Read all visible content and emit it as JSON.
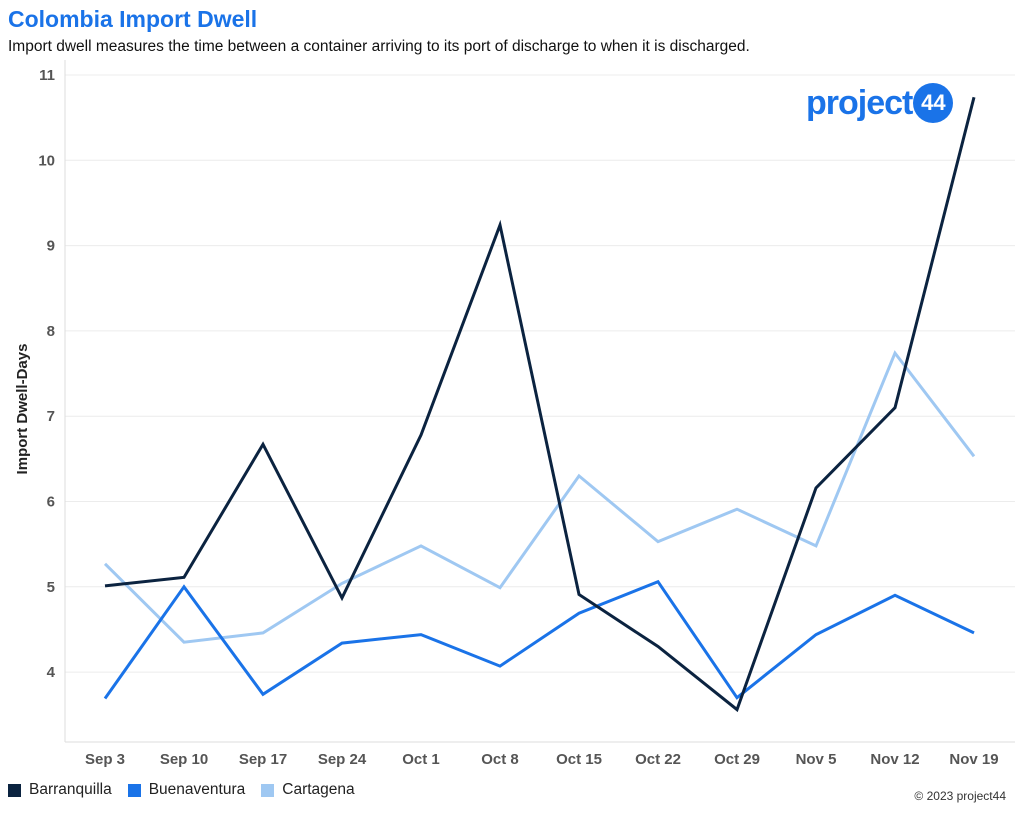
{
  "header": {
    "title": "Colombia Import Dwell",
    "subtitle": "Import dwell measures the time between a container arriving to its port of discharge to when it is discharged."
  },
  "logo": {
    "text": "project",
    "badge": "44"
  },
  "footer": {
    "copyright": "© 2023 project44"
  },
  "colors": {
    "title": "#1a73e8",
    "barranquilla": "#0b2340",
    "buenaventura": "#1a73e8",
    "cartagena": "#9fc8f2"
  },
  "chart_data": {
    "type": "line",
    "title": "Colombia Import Dwell",
    "xlabel": "",
    "ylabel": "Import Dwell-Days",
    "categories": [
      "Sep 3",
      "Sep 10",
      "Sep 17",
      "Sep 24",
      "Oct 1",
      "Oct 8",
      "Oct 15",
      "Oct 22",
      "Oct 29",
      "Nov 5",
      "Nov 12",
      "Nov 19"
    ],
    "ylim": [
      3.2,
      11
    ],
    "yticks": [
      4,
      5,
      6,
      7,
      8,
      9,
      10,
      11
    ],
    "grid": true,
    "legend": "bottom-left",
    "series": [
      {
        "name": "Barranquilla",
        "color": "#0b2340",
        "values": [
          5.01,
          5.11,
          6.67,
          4.87,
          6.78,
          9.24,
          4.91,
          4.3,
          3.56,
          6.16,
          7.1,
          10.74
        ]
      },
      {
        "name": "Buenaventura",
        "color": "#1a73e8",
        "values": [
          3.69,
          5.0,
          3.74,
          4.34,
          4.44,
          4.07,
          4.69,
          5.06,
          3.7,
          4.44,
          4.9,
          4.46
        ]
      },
      {
        "name": "Cartagena",
        "color": "#9fc8f2",
        "values": [
          5.27,
          4.35,
          4.46,
          5.04,
          5.48,
          4.99,
          6.3,
          5.53,
          5.91,
          5.48,
          7.74,
          6.53
        ]
      }
    ]
  }
}
